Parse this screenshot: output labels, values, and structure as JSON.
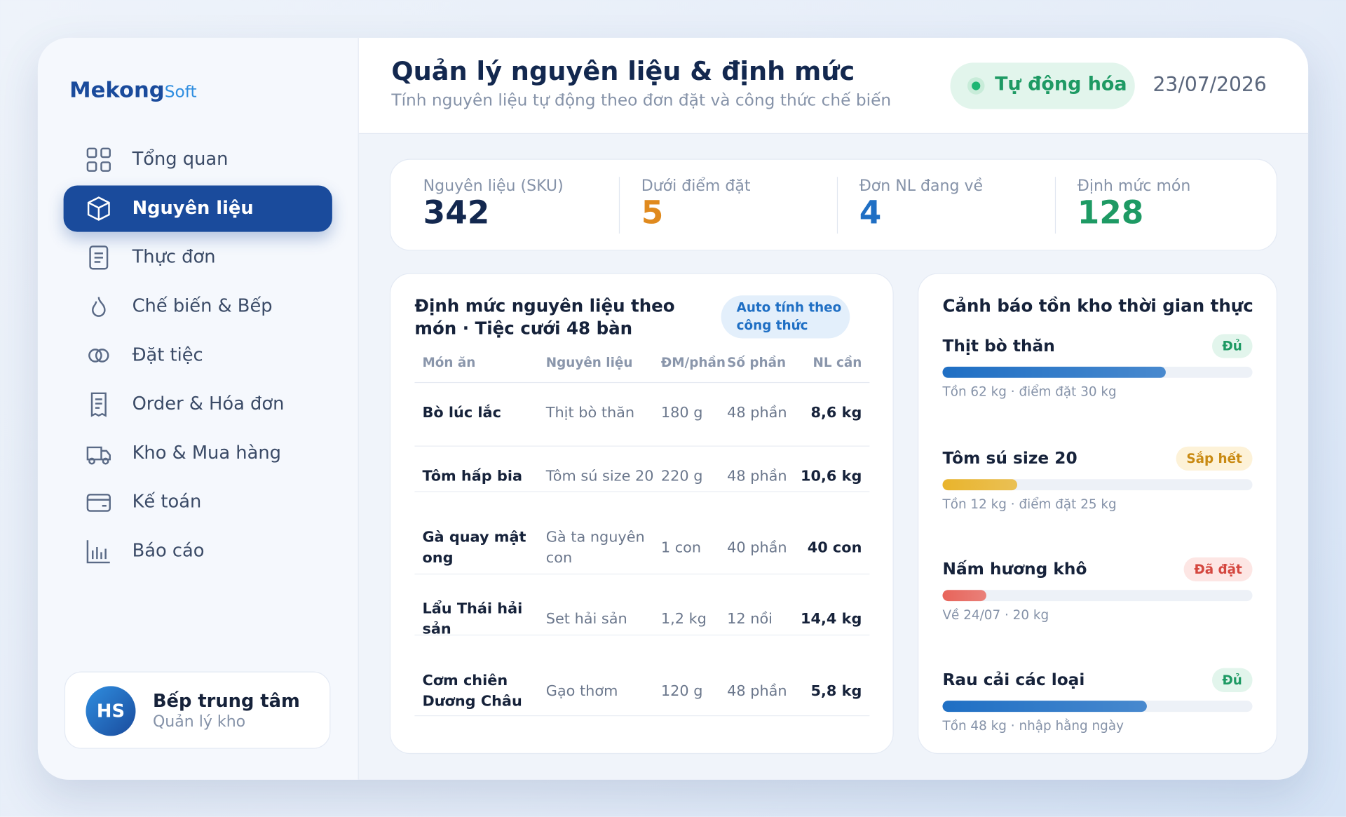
{
  "brand": {
    "name": "Mekong",
    "suffix": "Soft"
  },
  "nav": [
    {
      "label": "Tổng quan"
    },
    {
      "label": "Nguyên liệu"
    },
    {
      "label": "Thực đơn"
    },
    {
      "label": "Chế biến & Bếp"
    },
    {
      "label": "Đặt tiệc"
    },
    {
      "label": "Order & Hóa đơn"
    },
    {
      "label": "Kho & Mua hàng"
    },
    {
      "label": "Kế toán"
    },
    {
      "label": "Báo cáo"
    }
  ],
  "user": {
    "initials": "HS",
    "name": "Bếp trung tâm",
    "role": "Quản lý kho"
  },
  "header": {
    "title": "Quản lý nguyên liệu & định mức",
    "subtitle": "Tính nguyên liệu tự động theo đơn đặt và công thức chế biến",
    "badge": "Tự động hóa",
    "date": "23/07/2026"
  },
  "kpis": [
    {
      "label": "Nguyên liệu (SKU)",
      "value": "342",
      "color": "#13284f"
    },
    {
      "label": "Dưới điểm đặt",
      "value": "5",
      "color": "#e08a1e"
    },
    {
      "label": "Đơn NL đang về",
      "value": "4",
      "color": "#1f6fc4"
    },
    {
      "label": "Định mức món",
      "value": "128",
      "color": "#1e9a64"
    }
  ],
  "table": {
    "title": "Định mức nguyên liệu theo món · Tiệc cưới 48 bàn",
    "chip": "Auto tính theo công thức",
    "columns": [
      "Món ăn",
      "Nguyên liệu",
      "ĐM/phần",
      "Số phần",
      "NL cần"
    ],
    "rows": [
      [
        "Bò lúc lắc",
        "Thịt bò thăn",
        "180 g",
        "48 phần",
        "8,6 kg"
      ],
      [
        "Tôm hấp bia",
        "Tôm sú size 20",
        "220 g",
        "48 phần",
        "10,6 kg"
      ],
      [
        "Gà quay mật ong",
        "Gà ta nguyên con",
        "1 con",
        "40 phần",
        "40 con"
      ],
      [
        "Lẩu Thái hải sản",
        "Set hải sản",
        "1,2 kg",
        "12 nồi",
        "14,4 kg"
      ],
      [
        "Cơm chiên Dương Châu",
        "Gạo thơm",
        "120 g",
        "48 phần",
        "5,8 kg"
      ]
    ]
  },
  "alerts": {
    "title": "Cảnh báo tồn kho thời gian thực",
    "items": [
      {
        "name": "Thịt bò thăn",
        "status": "Đủ",
        "status_color": "#1e9a64",
        "status_bg": "#e2f5ec",
        "level": 72,
        "color": "#1f6fc4",
        "note": "Tồn 62 kg · điểm đặt 30 kg"
      },
      {
        "name": "Tôm sú size 20",
        "status": "Sắp hết",
        "status_color": "#c98a12",
        "status_bg": "#fdf2d8",
        "level": 24,
        "color": "#e9b42c",
        "note": "Tồn 12 kg · điểm đặt 25 kg"
      },
      {
        "name": "Nấm hương khô",
        "status": "Đã đặt",
        "status_color": "#d4473f",
        "status_bg": "#fde6e4",
        "level": 14,
        "color": "#e8645a",
        "note": "Về 24/07 · 20 kg"
      },
      {
        "name": "Rau cải các loại",
        "status": "Đủ",
        "status_color": "#1e9a64",
        "status_bg": "#e2f5ec",
        "level": 66,
        "color": "#1f6fc4",
        "note": "Tồn 48 kg · nhập hằng ngày"
      }
    ]
  }
}
